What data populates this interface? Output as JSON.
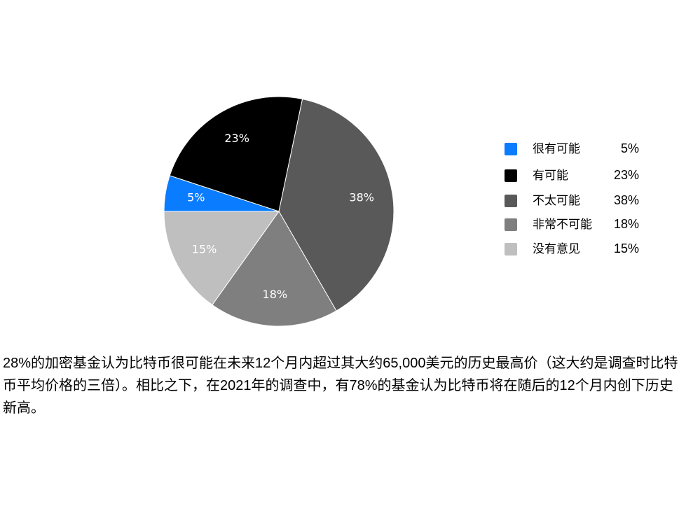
{
  "chart_data": {
    "type": "pie",
    "categories": [
      "很有可能",
      "有可能",
      "不太可能",
      "非常不可能",
      "没有意见"
    ],
    "values": [
      5,
      23,
      38,
      18,
      15
    ],
    "value_labels": [
      "5%",
      "23%",
      "38%",
      "18%",
      "15%"
    ],
    "colors": [
      "#0a7cff",
      "#000000",
      "#595959",
      "#7f7f7f",
      "#bfbfbf"
    ],
    "legend": "right"
  },
  "paragraph": "28%的加密基金认为比特币很可能在未来12个月内超过其大约65,000美元的历史最高价（这大约是调查时比特币平均价格的三倍）。相比之下，在2021年的调查中，有78%的基金认为比特币将在随后的12个月内创下历史新高。"
}
